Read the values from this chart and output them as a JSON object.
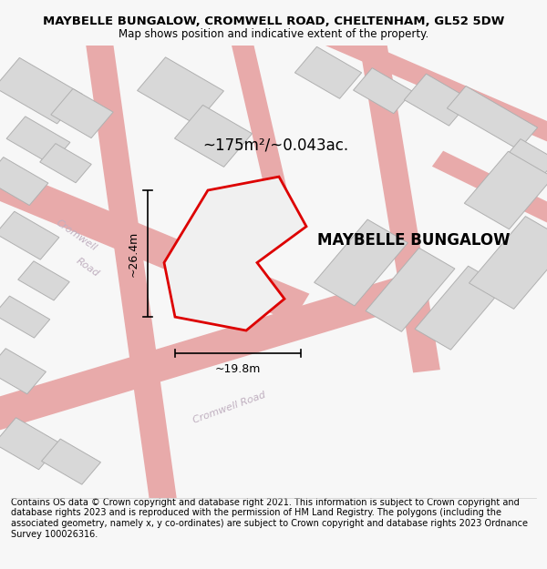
{
  "title": "MAYBELLE BUNGALOW, CROMWELL ROAD, CHELTENHAM, GL52 5DW",
  "subtitle": "Map shows position and indicative extent of the property.",
  "property_label": "MAYBELLE BUNGALOW",
  "area_label": "~175m²/~0.043ac.",
  "width_label": "~19.8m",
  "height_label": "~26.4m",
  "footer": "Contains OS data © Crown copyright and database right 2021. This information is subject to Crown copyright and database rights 2023 and is reproduced with the permission of HM Land Registry. The polygons (including the associated geometry, namely x, y co-ordinates) are subject to Crown copyright and database rights 2023 Ordnance Survey 100026316.",
  "bg_color": "#f7f7f7",
  "map_bg": "#ffffff",
  "road_color": "#e8aaaa",
  "building_fill": "#d8d8d8",
  "building_edge": "#b0b0b0",
  "highlight_color": "#dd0000",
  "road_label_color": "#c0b0c0",
  "title_fontsize": 9.5,
  "subtitle_fontsize": 8.5,
  "area_fontsize": 12,
  "property_fontsize": 12,
  "dim_fontsize": 9,
  "road_label_fontsize": 8,
  "footer_fontsize": 7
}
